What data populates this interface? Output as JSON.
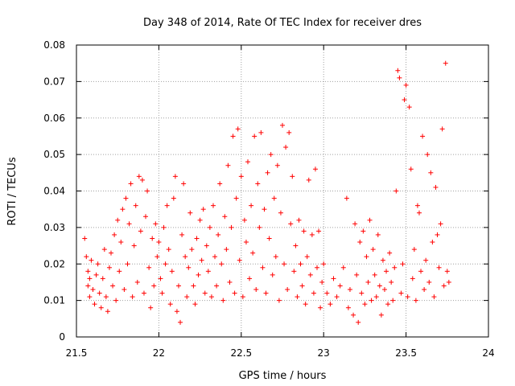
{
  "chart_data": {
    "type": "scatter",
    "title": "Day 348 of 2014, Rate Of TEC Index for receiver dres",
    "xlabel": "GPS time / hours",
    "ylabel": "ROTI / TECUs",
    "xlim": [
      21.5,
      24
    ],
    "ylim": [
      0,
      0.08
    ],
    "x_ticks": [
      21.5,
      22,
      22.5,
      23,
      23.5,
      24
    ],
    "x_tick_labels": [
      "21.5",
      "22",
      "22.5",
      "23",
      "23.5",
      "24"
    ],
    "y_ticks": [
      0,
      0.01,
      0.02,
      0.03,
      0.04,
      0.05,
      0.06,
      0.07,
      0.08
    ],
    "y_tick_labels": [
      "0",
      "0.01",
      "0.02",
      "0.03",
      "0.04",
      "0.05",
      "0.06",
      "0.07",
      "0.08"
    ],
    "grid": true,
    "marker": "+",
    "series": [
      {
        "name": "ROTI",
        "color": "#ff0000",
        "points": [
          [
            21.55,
            0.027
          ],
          [
            21.56,
            0.022
          ],
          [
            21.57,
            0.018
          ],
          [
            21.57,
            0.014
          ],
          [
            21.58,
            0.011
          ],
          [
            21.58,
            0.016
          ],
          [
            21.59,
            0.021
          ],
          [
            21.6,
            0.013
          ],
          [
            21.61,
            0.009
          ],
          [
            21.62,
            0.017
          ],
          [
            21.63,
            0.02
          ],
          [
            21.64,
            0.012
          ],
          [
            21.65,
            0.008
          ],
          [
            21.66,
            0.016
          ],
          [
            21.67,
            0.024
          ],
          [
            21.68,
            0.011
          ],
          [
            21.69,
            0.007
          ],
          [
            21.7,
            0.019
          ],
          [
            21.71,
            0.023
          ],
          [
            21.72,
            0.014
          ],
          [
            21.73,
            0.028
          ],
          [
            21.74,
            0.01
          ],
          [
            21.75,
            0.032
          ],
          [
            21.76,
            0.018
          ],
          [
            21.77,
            0.026
          ],
          [
            21.78,
            0.035
          ],
          [
            21.79,
            0.013
          ],
          [
            21.8,
            0.038
          ],
          [
            21.81,
            0.02
          ],
          [
            21.82,
            0.031
          ],
          [
            21.83,
            0.042
          ],
          [
            21.84,
            0.011
          ],
          [
            21.85,
            0.025
          ],
          [
            21.86,
            0.036
          ],
          [
            21.87,
            0.015
          ],
          [
            21.88,
            0.044
          ],
          [
            21.89,
            0.029
          ],
          [
            21.9,
            0.043
          ],
          [
            21.91,
            0.012
          ],
          [
            21.92,
            0.033
          ],
          [
            21.93,
            0.04
          ],
          [
            21.94,
            0.019
          ],
          [
            21.95,
            0.008
          ],
          [
            21.96,
            0.027
          ],
          [
            21.97,
            0.014
          ],
          [
            21.98,
            0.031
          ],
          [
            21.99,
            0.022
          ],
          [
            22.0,
            0.026
          ],
          [
            22.01,
            0.016
          ],
          [
            22.02,
            0.012
          ],
          [
            22.03,
            0.03
          ],
          [
            22.04,
            0.02
          ],
          [
            22.05,
            0.036
          ],
          [
            22.06,
            0.024
          ],
          [
            22.07,
            0.009
          ],
          [
            22.08,
            0.018
          ],
          [
            22.09,
            0.038
          ],
          [
            22.1,
            0.044
          ],
          [
            22.11,
            0.007
          ],
          [
            22.12,
            0.014
          ],
          [
            22.13,
            0.004
          ],
          [
            22.14,
            0.028
          ],
          [
            22.15,
            0.042
          ],
          [
            22.16,
            0.022
          ],
          [
            22.17,
            0.011
          ],
          [
            22.18,
            0.019
          ],
          [
            22.19,
            0.034
          ],
          [
            22.2,
            0.024
          ],
          [
            22.21,
            0.014
          ],
          [
            22.22,
            0.009
          ],
          [
            22.23,
            0.027
          ],
          [
            22.24,
            0.017
          ],
          [
            22.25,
            0.032
          ],
          [
            22.26,
            0.021
          ],
          [
            22.27,
            0.035
          ],
          [
            22.28,
            0.012
          ],
          [
            22.29,
            0.025
          ],
          [
            22.3,
            0.018
          ],
          [
            22.31,
            0.03
          ],
          [
            22.32,
            0.011
          ],
          [
            22.33,
            0.036
          ],
          [
            22.34,
            0.022
          ],
          [
            22.35,
            0.014
          ],
          [
            22.36,
            0.028
          ],
          [
            22.37,
            0.042
          ],
          [
            22.38,
            0.02
          ],
          [
            22.39,
            0.01
          ],
          [
            22.4,
            0.033
          ],
          [
            22.41,
            0.024
          ],
          [
            22.42,
            0.047
          ],
          [
            22.43,
            0.015
          ],
          [
            22.44,
            0.03
          ],
          [
            22.45,
            0.055
          ],
          [
            22.46,
            0.012
          ],
          [
            22.47,
            0.038
          ],
          [
            22.48,
            0.057
          ],
          [
            22.49,
            0.021
          ],
          [
            22.5,
            0.044
          ],
          [
            22.51,
            0.011
          ],
          [
            22.52,
            0.032
          ],
          [
            22.53,
            0.026
          ],
          [
            22.54,
            0.048
          ],
          [
            22.55,
            0.016
          ],
          [
            22.56,
            0.036
          ],
          [
            22.57,
            0.023
          ],
          [
            22.58,
            0.055
          ],
          [
            22.59,
            0.013
          ],
          [
            22.6,
            0.042
          ],
          [
            22.61,
            0.03
          ],
          [
            22.62,
            0.056
          ],
          [
            22.63,
            0.019
          ],
          [
            22.64,
            0.035
          ],
          [
            22.65,
            0.012
          ],
          [
            22.66,
            0.045
          ],
          [
            22.67,
            0.027
          ],
          [
            22.68,
            0.05
          ],
          [
            22.69,
            0.017
          ],
          [
            22.7,
            0.038
          ],
          [
            22.71,
            0.022
          ],
          [
            22.72,
            0.047
          ],
          [
            22.73,
            0.01
          ],
          [
            22.74,
            0.034
          ],
          [
            22.75,
            0.058
          ],
          [
            22.76,
            0.02
          ],
          [
            22.77,
            0.052
          ],
          [
            22.78,
            0.013
          ],
          [
            22.79,
            0.056
          ],
          [
            22.8,
            0.031
          ],
          [
            22.81,
            0.044
          ],
          [
            22.82,
            0.018
          ],
          [
            22.83,
            0.025
          ],
          [
            22.84,
            0.011
          ],
          [
            22.85,
            0.032
          ],
          [
            22.86,
            0.02
          ],
          [
            22.87,
            0.014
          ],
          [
            22.88,
            0.029
          ],
          [
            22.89,
            0.009
          ],
          [
            22.9,
            0.022
          ],
          [
            22.91,
            0.043
          ],
          [
            22.92,
            0.017
          ],
          [
            22.93,
            0.028
          ],
          [
            22.94,
            0.012
          ],
          [
            22.95,
            0.046
          ],
          [
            22.96,
            0.019
          ],
          [
            22.97,
            0.029
          ],
          [
            22.98,
            0.008
          ],
          [
            22.99,
            0.015
          ],
          [
            23.0,
            0.02
          ],
          [
            23.02,
            0.012
          ],
          [
            23.04,
            0.009
          ],
          [
            23.06,
            0.016
          ],
          [
            23.08,
            0.011
          ],
          [
            23.1,
            0.014
          ],
          [
            23.12,
            0.019
          ],
          [
            23.14,
            0.038
          ],
          [
            23.15,
            0.008
          ],
          [
            23.16,
            0.013
          ],
          [
            23.18,
            0.006
          ],
          [
            23.19,
            0.031
          ],
          [
            23.2,
            0.017
          ],
          [
            23.21,
            0.004
          ],
          [
            23.22,
            0.026
          ],
          [
            23.23,
            0.012
          ],
          [
            23.24,
            0.029
          ],
          [
            23.25,
            0.009
          ],
          [
            23.26,
            0.022
          ],
          [
            23.27,
            0.015
          ],
          [
            23.28,
            0.032
          ],
          [
            23.29,
            0.01
          ],
          [
            23.3,
            0.024
          ],
          [
            23.31,
            0.017
          ],
          [
            23.32,
            0.011
          ],
          [
            23.33,
            0.028
          ],
          [
            23.34,
            0.014
          ],
          [
            23.35,
            0.006
          ],
          [
            23.36,
            0.021
          ],
          [
            23.37,
            0.013
          ],
          [
            23.38,
            0.018
          ],
          [
            23.39,
            0.009
          ],
          [
            23.4,
            0.023
          ],
          [
            23.41,
            0.015
          ],
          [
            23.42,
            0.01
          ],
          [
            23.43,
            0.019
          ],
          [
            23.44,
            0.04
          ],
          [
            23.45,
            0.073
          ],
          [
            23.46,
            0.071
          ],
          [
            23.47,
            0.012
          ],
          [
            23.48,
            0.02
          ],
          [
            23.49,
            0.065
          ],
          [
            23.5,
            0.069
          ],
          [
            23.51,
            0.011
          ],
          [
            23.52,
            0.063
          ],
          [
            23.53,
            0.046
          ],
          [
            23.54,
            0.016
          ],
          [
            23.55,
            0.024
          ],
          [
            23.56,
            0.01
          ],
          [
            23.57,
            0.036
          ],
          [
            23.58,
            0.034
          ],
          [
            23.59,
            0.018
          ],
          [
            23.6,
            0.055
          ],
          [
            23.61,
            0.013
          ],
          [
            23.62,
            0.021
          ],
          [
            23.63,
            0.05
          ],
          [
            23.64,
            0.015
          ],
          [
            23.65,
            0.045
          ],
          [
            23.66,
            0.026
          ],
          [
            23.67,
            0.011
          ],
          [
            23.68,
            0.041
          ],
          [
            23.69,
            0.028
          ],
          [
            23.7,
            0.019
          ],
          [
            23.71,
            0.031
          ],
          [
            23.72,
            0.057
          ],
          [
            23.73,
            0.014
          ],
          [
            23.74,
            0.075
          ],
          [
            23.75,
            0.018
          ],
          [
            23.76,
            0.015
          ]
        ]
      }
    ]
  }
}
